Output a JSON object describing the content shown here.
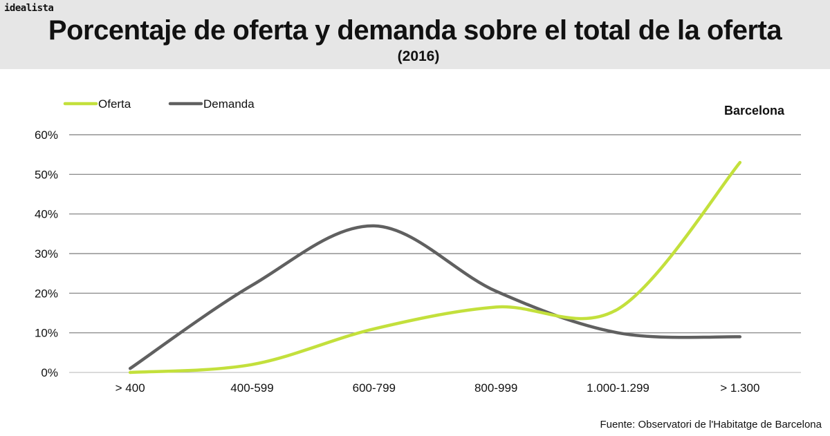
{
  "header": {
    "brand": "idealista",
    "title": "Porcentaje de oferta y demanda sobre el total de la oferta",
    "subtitle": "(2016)"
  },
  "footer": {
    "source": "Fuente: Observatori de l'Habitatge de Barcelona"
  },
  "colors": {
    "header_bg": "#e6e6e6",
    "oferta": "#c3e03c",
    "demanda": "#606060",
    "grid": "#7a7a7a"
  },
  "chart_data": {
    "type": "line",
    "smooth": true,
    "title": "Barcelona",
    "xlabel": "",
    "ylabel": "",
    "categories": [
      "> 400",
      "400-599",
      "600-799",
      "800-999",
      "1.000-1.299",
      "> 1.300"
    ],
    "y_ticks": [
      "0%",
      "10%",
      "20%",
      "30%",
      "40%",
      "50%",
      "60%"
    ],
    "ylim": [
      0,
      60
    ],
    "grid": true,
    "legend_position": "top-left",
    "series": [
      {
        "name": "Oferta",
        "color": "#c3e03c",
        "values": [
          0,
          2,
          11,
          16.5,
          16,
          53
        ]
      },
      {
        "name": "Demanda",
        "color": "#606060",
        "values": [
          1,
          22,
          37,
          20.5,
          10,
          9
        ]
      }
    ]
  }
}
